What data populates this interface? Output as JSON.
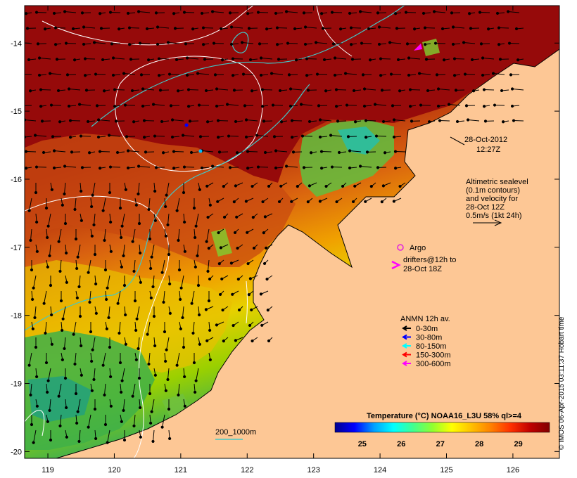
{
  "axes": {
    "lon_ticks": [
      "119",
      "120",
      "121",
      "122",
      "123",
      "124",
      "125",
      "126"
    ],
    "lat_ticks": [
      "-14",
      "-15",
      "-16",
      "-17",
      "-18",
      "-19",
      "-20"
    ],
    "lon_range": [
      118.65,
      126.7
    ],
    "lat_range": [
      -20.1,
      -13.45
    ]
  },
  "datetime": {
    "date": "28-Oct-2012",
    "time": "12:27Z"
  },
  "altimetry": {
    "lines": [
      "Altimetric sealevel",
      "(0.1m contours)",
      "and velocity for",
      "28-Oct 12Z",
      "0.5m/s (1kt 24h)"
    ]
  },
  "argo": {
    "label": "Argo"
  },
  "drifters": {
    "lines": [
      "drifters@12h to",
      "28-Oct 18Z"
    ]
  },
  "anmn": {
    "title": "ANMN 12h av.",
    "items": [
      {
        "label": "0-30m",
        "color": "#000000"
      },
      {
        "label": "30-80m",
        "color": "#0000ff"
      },
      {
        "label": "80-150m",
        "color": "#00ffff"
      },
      {
        "label": "150-300m",
        "color": "#ff0000"
      },
      {
        "label": "300-600m",
        "color": "#ff00ff"
      }
    ]
  },
  "isobath": {
    "label": "200_1000m",
    "color": "#40c8c8"
  },
  "colorbar": {
    "title": "Temperature (°C) NOAA16_L3U 58% ql>=4",
    "ticks": [
      "25",
      "26",
      "27",
      "28",
      "29"
    ],
    "range": [
      24.3,
      29.8
    ],
    "colors": [
      "#00008f",
      "#0000ff",
      "#00a0ff",
      "#00ffff",
      "#40ff90",
      "#90ff30",
      "#ffff00",
      "#ffc000",
      "#ff8000",
      "#ff3000",
      "#c00000",
      "#800000"
    ]
  },
  "credit": "© IMOS 06-Apr-2015 03:11:37 Hobart time",
  "colors": {
    "land": "#fdc795",
    "warm_sea": "#960a0a",
    "frame": "#000000"
  }
}
